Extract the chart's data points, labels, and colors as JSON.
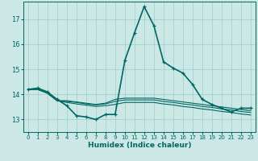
{
  "xlabel": "Humidex (Indice chaleur)",
  "background_color": "#cce8e4",
  "grid_color": "#99cccc",
  "line_color": "#006666",
  "xlim": [
    -0.5,
    23.5
  ],
  "ylim": [
    12.5,
    17.7
  ],
  "yticks": [
    13,
    14,
    15,
    16,
    17
  ],
  "xticks": [
    0,
    1,
    2,
    3,
    4,
    5,
    6,
    7,
    8,
    9,
    10,
    11,
    12,
    13,
    14,
    15,
    16,
    17,
    18,
    19,
    20,
    21,
    22,
    23
  ],
  "series": [
    {
      "x": [
        0,
        1,
        2,
        3,
        4,
        5,
        6,
        7,
        8,
        9,
        10,
        11,
        12,
        13,
        14,
        15,
        16,
        17,
        18,
        19,
        20,
        21,
        22,
        23
      ],
      "y": [
        14.2,
        14.25,
        14.1,
        13.8,
        13.55,
        13.15,
        13.1,
        13.0,
        13.2,
        13.2,
        15.35,
        16.45,
        17.5,
        16.75,
        15.3,
        15.05,
        14.85,
        14.4,
        13.8,
        13.6,
        13.45,
        13.3,
        13.45,
        13.45
      ],
      "marker": true,
      "linewidth": 1.2
    },
    {
      "x": [
        0,
        1,
        2,
        3,
        4,
        5,
        6,
        7,
        8,
        9,
        10,
        11,
        12,
        13,
        14,
        15,
        16,
        17,
        18,
        19,
        20,
        21,
        22,
        23
      ],
      "y": [
        14.2,
        14.2,
        14.05,
        13.75,
        13.75,
        13.7,
        13.65,
        13.6,
        13.65,
        13.8,
        13.85,
        13.85,
        13.85,
        13.85,
        13.8,
        13.75,
        13.7,
        13.65,
        13.6,
        13.55,
        13.5,
        13.45,
        13.4,
        13.35
      ],
      "marker": false,
      "linewidth": 0.8
    },
    {
      "x": [
        0,
        1,
        2,
        3,
        4,
        5,
        6,
        7,
        8,
        9,
        10,
        11,
        12,
        13,
        14,
        15,
        16,
        17,
        18,
        19,
        20,
        21,
        22,
        23
      ],
      "y": [
        14.2,
        14.2,
        14.05,
        13.75,
        13.72,
        13.68,
        13.62,
        13.58,
        13.62,
        13.72,
        13.78,
        13.78,
        13.78,
        13.78,
        13.72,
        13.68,
        13.62,
        13.58,
        13.52,
        13.48,
        13.42,
        13.38,
        13.32,
        13.28
      ],
      "marker": false,
      "linewidth": 0.8
    },
    {
      "x": [
        0,
        1,
        2,
        3,
        4,
        5,
        6,
        7,
        8,
        9,
        10,
        11,
        12,
        13,
        14,
        15,
        16,
        17,
        18,
        19,
        20,
        21,
        22,
        23
      ],
      "y": [
        14.2,
        14.2,
        14.05,
        13.75,
        13.68,
        13.62,
        13.57,
        13.52,
        13.55,
        13.6,
        13.68,
        13.68,
        13.68,
        13.68,
        13.62,
        13.58,
        13.52,
        13.48,
        13.42,
        13.38,
        13.32,
        13.28,
        13.22,
        13.18
      ],
      "marker": false,
      "linewidth": 0.8
    }
  ]
}
